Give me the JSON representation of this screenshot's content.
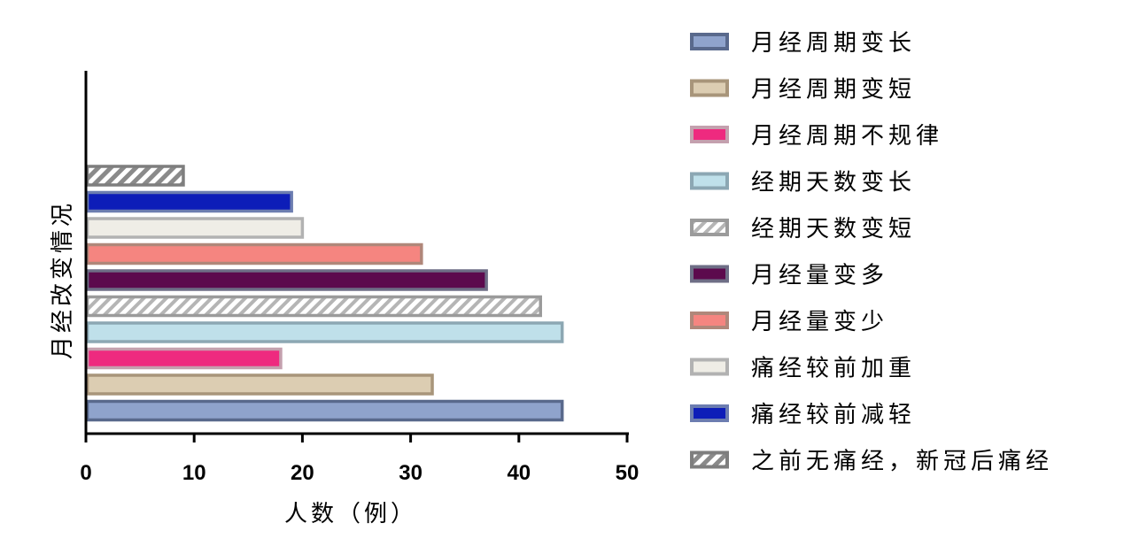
{
  "chart_data": {
    "type": "bar",
    "orientation": "horizontal",
    "xlabel": "人数（例）",
    "ylabel": "月经改变情况",
    "xlim": [
      0,
      50
    ],
    "xticks": [
      0,
      10,
      20,
      30,
      40,
      50
    ],
    "grid": false,
    "legend_position": "right",
    "series": [
      {
        "name": "月经周期变长",
        "value": 44,
        "fill": "#8fa3cc",
        "stroke": "#59698c",
        "pattern": "solid"
      },
      {
        "name": "月经周期变短",
        "value": 32,
        "fill": "#dccdb2",
        "stroke": "#a8957a",
        "pattern": "solid"
      },
      {
        "name": "月经周期不规律",
        "value": 18,
        "fill": "#ee2a7f",
        "stroke": "#c4a0ae",
        "pattern": "solid"
      },
      {
        "name": "经期天数变长",
        "value": 44,
        "fill": "#bfe0ea",
        "stroke": "#8ca7b3",
        "pattern": "solid"
      },
      {
        "name": "经期天数变短",
        "value": 42,
        "fill": "#ffffff",
        "stroke": "#9b9b9b",
        "pattern": "hatch"
      },
      {
        "name": "月经量变多",
        "value": 37,
        "fill": "#5c0a4d",
        "stroke": "#6e6e86",
        "pattern": "solid"
      },
      {
        "name": "月经量变少",
        "value": 31,
        "fill": "#f58580",
        "stroke": "#b0877a",
        "pattern": "solid"
      },
      {
        "name": "痛经较前加重",
        "value": 20,
        "fill": "#efede6",
        "stroke": "#b2b2b2",
        "pattern": "solid"
      },
      {
        "name": "痛经较前减轻",
        "value": 19,
        "fill": "#0d1db8",
        "stroke": "#6c7db0",
        "pattern": "solid"
      },
      {
        "name": "之前无痛经，新冠后痛经",
        "value": 9,
        "fill": "#ffffff",
        "stroke": "#7e7e7e",
        "pattern": "hatch"
      }
    ]
  }
}
